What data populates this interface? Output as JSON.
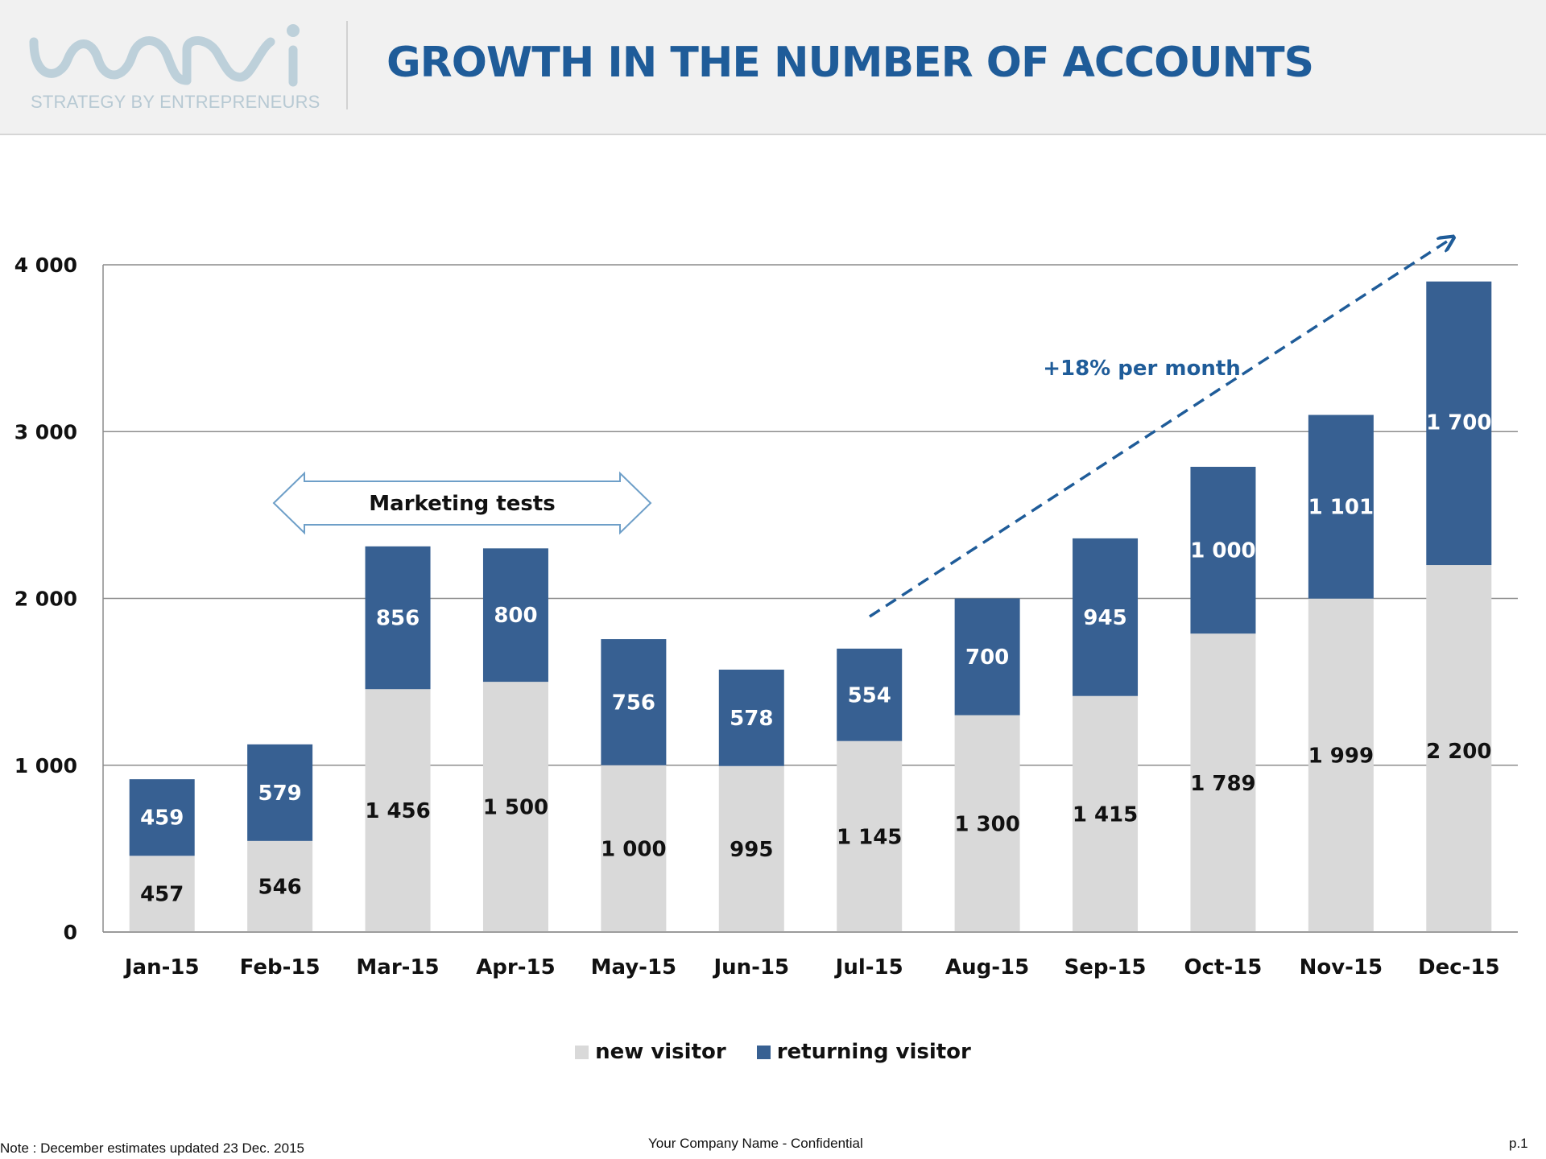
{
  "header": {
    "logo_text": "wmi",
    "logo_tagline": "STRATEGY BY ENTREPRENEURS",
    "title": "GROWTH IN THE NUMBER OF ACCOUNTS"
  },
  "colors": {
    "new_visitor": "#d9d9d9",
    "returning_visitor": "#376092",
    "title": "#1f5c99",
    "annotation": "#1f5c99"
  },
  "chart_data": {
    "type": "bar",
    "stacked": true,
    "categories": [
      "Jan-15",
      "Feb-15",
      "Mar-15",
      "Apr-15",
      "May-15",
      "Jun-15",
      "Jul-15",
      "Aug-15",
      "Sep-15",
      "Oct-15",
      "Nov-15",
      "Dec-15"
    ],
    "series": [
      {
        "name": "new visitor",
        "values": [
          457,
          546,
          1456,
          1500,
          1000,
          995,
          1145,
          1300,
          1415,
          1789,
          1999,
          2200
        ],
        "labels": [
          "457",
          "546",
          "1 456",
          "1 500",
          "1 000",
          "995",
          "1 145",
          "1 300",
          "1 415",
          "1 789",
          "1 999",
          "2 200"
        ]
      },
      {
        "name": "returning visitor",
        "values": [
          459,
          579,
          856,
          800,
          756,
          578,
          554,
          700,
          945,
          1000,
          1101,
          1700
        ],
        "labels": [
          "459",
          "579",
          "856",
          "800",
          "756",
          "578",
          "554",
          "700",
          "945",
          "1 000",
          "1 101",
          "1 700"
        ]
      }
    ],
    "ylim": [
      0,
      4000
    ],
    "yticks": [
      0,
      1000,
      2000,
      3000,
      4000
    ],
    "ytick_labels": [
      "0",
      "1 000",
      "2 000",
      "3 000",
      "4 000"
    ],
    "grid": true,
    "legend_position": "bottom",
    "annotations": {
      "marketing": "Marketing tests",
      "growth": "+18% per month"
    }
  },
  "footer": {
    "note": "Note : December estimates updated 23 Dec. 2015",
    "confidential": "Your Company Name - Confidential",
    "page": "p.1"
  }
}
